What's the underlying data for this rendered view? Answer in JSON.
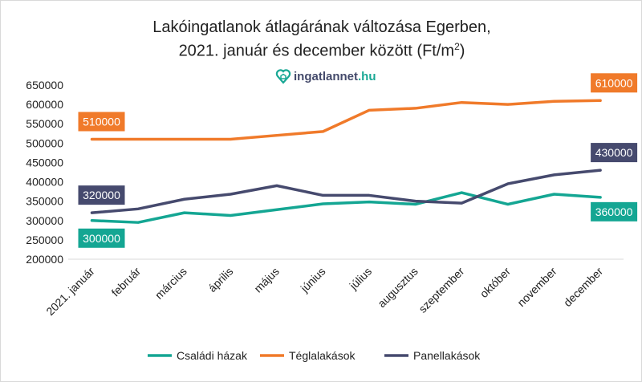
{
  "chart_data": {
    "type": "line",
    "title_line1": "Lakóingatlanok átlagárának változása Egerben,",
    "title_line2": "2021. január és december között (Ft/m",
    "title_sup": "2",
    "title_end": ")",
    "logo": {
      "name": "ingatlannet",
      "tld": ".hu",
      "icon": "house-heart-icon"
    },
    "categories": [
      "2021. január",
      "február",
      "március",
      "április",
      "május",
      "június",
      "július",
      "augusztus",
      "szeptember",
      "október",
      "november",
      "december"
    ],
    "ylim": [
      200000,
      650000
    ],
    "yticks": [
      200000,
      250000,
      300000,
      350000,
      400000,
      450000,
      500000,
      550000,
      600000,
      650000
    ],
    "grid": false,
    "legend_position": "bottom",
    "series": [
      {
        "name": "Családi házak",
        "color": "#14a693",
        "values": [
          300000,
          295000,
          320000,
          313000,
          328000,
          343000,
          348000,
          342000,
          372000,
          342000,
          368000,
          360000
        ],
        "labels": [
          "300000",
          "360000"
        ]
      },
      {
        "name": "Téglalakások",
        "color": "#f07a2a",
        "values": [
          510000,
          510000,
          510000,
          510000,
          520000,
          530000,
          585000,
          590000,
          605000,
          600000,
          608000,
          610000
        ],
        "labels": [
          "510000",
          "610000"
        ]
      },
      {
        "name": "Panellakások",
        "color": "#464a6e",
        "values": [
          320000,
          330000,
          355000,
          368000,
          390000,
          365000,
          365000,
          350000,
          345000,
          395000,
          418000,
          430000
        ],
        "labels": [
          "320000",
          "430000"
        ]
      }
    ]
  }
}
